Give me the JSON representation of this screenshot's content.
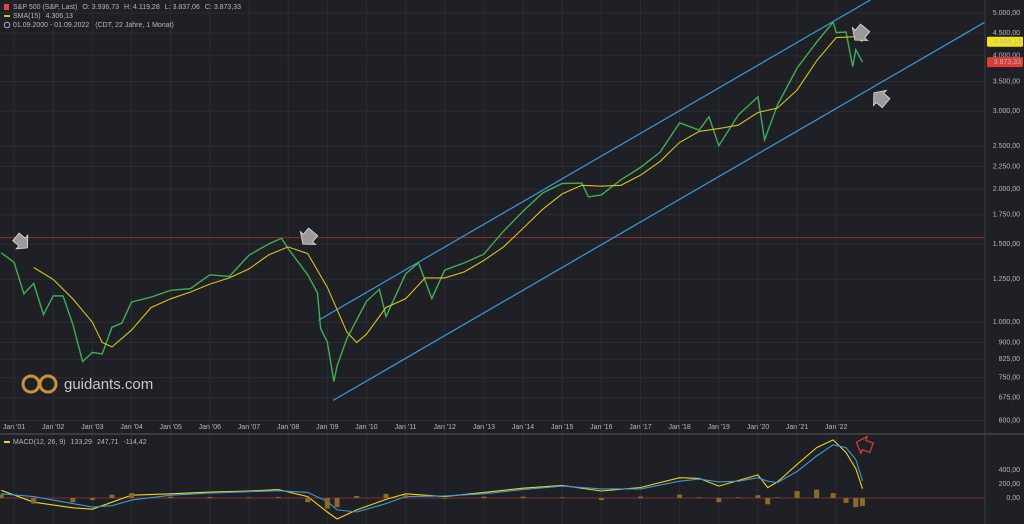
{
  "chart_data": [
    {
      "type": "line",
      "series": [
        {
          "name": "S&P 500 (S&P, Last)",
          "color": "#3fae55",
          "kind": "line",
          "x": [
            2000.67,
            2001.0,
            2001.25,
            2001.5,
            2001.75,
            2002.0,
            2002.25,
            2002.5,
            2002.75,
            2003.0,
            2003.25,
            2003.5,
            2003.75,
            2004.0,
            2004.5,
            2005.0,
            2005.5,
            2006.0,
            2006.5,
            2007.0,
            2007.5,
            2007.83,
            2008.0,
            2008.5,
            2008.75,
            2008.83,
            2009.0,
            2009.17,
            2009.25,
            2009.5,
            2010.0,
            2010.33,
            2010.5,
            2011.0,
            2011.33,
            2011.67,
            2012.0,
            2012.5,
            2013.0,
            2013.5,
            2014.0,
            2014.5,
            2015.0,
            2015.5,
            2015.67,
            2016.0,
            2016.5,
            2017.0,
            2017.5,
            2018.0,
            2018.5,
            2018.75,
            2019.0,
            2019.5,
            2020.0,
            2020.17,
            2020.5,
            2021.0,
            2021.5,
            2021.92,
            2022.0,
            2022.25,
            2022.42,
            2022.5,
            2022.67
          ],
          "values": [
            1436,
            1366,
            1160,
            1224,
            1040,
            1148,
            1147,
            990,
            815,
            855,
            848,
            975,
            995,
            1111,
            1140,
            1181,
            1191,
            1280,
            1270,
            1418,
            1503,
            1549,
            1468,
            1280,
            1166,
            968,
            903,
            735,
            797,
            919,
            1115,
            1187,
            1030,
            1286,
            1363,
            1131,
            1312,
            1362,
            1426,
            1606,
            1782,
            1960,
            2059,
            2063,
            1920,
            1940,
            2099,
            2239,
            2423,
            2823,
            2718,
            2913,
            2507,
            2942,
            3231,
            2585,
            3100,
            3756,
            4298,
            4766,
            4515,
            4530,
            3785,
            4130,
            3873
          ],
          "last": {
            "value": 3873.33,
            "label": "3.873,33"
          },
          "badge_color": "#e03a3a"
        },
        {
          "name": "SMA(15)",
          "color": "#d9c21c",
          "kind": "line",
          "x": [
            2001.5,
            2002.0,
            2002.5,
            2003.0,
            2003.25,
            2003.5,
            2004.0,
            2004.5,
            2005.0,
            2005.5,
            2006.0,
            2006.5,
            2007.0,
            2007.5,
            2008.0,
            2008.5,
            2009.0,
            2009.5,
            2009.75,
            2010.0,
            2010.5,
            2011.0,
            2011.5,
            2012.0,
            2012.5,
            2013.0,
            2013.5,
            2014.0,
            2014.5,
            2015.0,
            2015.5,
            2016.0,
            2016.5,
            2017.0,
            2017.5,
            2018.0,
            2018.5,
            2019.0,
            2019.5,
            2020.0,
            2020.5,
            2021.0,
            2021.5,
            2022.0,
            2022.5,
            2022.67
          ],
          "values": [
            1330,
            1250,
            1130,
            1000,
            900,
            880,
            960,
            1080,
            1130,
            1170,
            1220,
            1260,
            1320,
            1420,
            1480,
            1430,
            1200,
            950,
            900,
            940,
            1080,
            1130,
            1260,
            1260,
            1300,
            1380,
            1480,
            1630,
            1800,
            1950,
            2040,
            2030,
            2040,
            2150,
            2310,
            2550,
            2700,
            2740,
            2790,
            2980,
            3050,
            3350,
            3900,
            4400,
            4420,
            4306
          ],
          "last": {
            "value": 4306.13,
            "label": "4.306,13"
          },
          "badge_color": "#f2e21a"
        }
      ],
      "ohlc_labels": [
        "O:",
        "H:",
        "L:",
        "C:"
      ],
      "ohlc": [
        {
          "value": 3936.73,
          "label": "3.936,73"
        },
        {
          "value": 4119.28,
          "label": "4.119,28"
        },
        {
          "value": 3837.06,
          "label": "3.837,06"
        },
        {
          "value": 3873.33,
          "label": "3.873,33"
        }
      ],
      "date_range": "01.09.2000 - 01.09.2022",
      "range_note": "(CDT, 22 Jahre, 1 Monat)",
      "watermark": "guidants.com",
      "yscale": "log",
      "ylim": [
        565,
        5350
      ],
      "yticks": [
        {
          "value": 600,
          "label": "600,00"
        },
        {
          "value": 675,
          "label": "675,00"
        },
        {
          "value": 750,
          "label": "750,00"
        },
        {
          "value": 825,
          "label": "825,00"
        },
        {
          "value": 900,
          "label": "900,00"
        },
        {
          "value": 1000,
          "label": "1.000,00"
        },
        {
          "value": 1250,
          "label": "1.250,00"
        },
        {
          "value": 1500,
          "label": "1.500,00"
        },
        {
          "value": 1750,
          "label": "1.750,00"
        },
        {
          "value": 2000,
          "label": "2.000,00"
        },
        {
          "value": 2250,
          "label": "2.250,00"
        },
        {
          "value": 2500,
          "label": "2.500,00"
        },
        {
          "value": 3000,
          "label": "3.000,00"
        },
        {
          "value": 3500,
          "label": "3.500,00"
        },
        {
          "value": 4000,
          "label": "4.000,00"
        },
        {
          "value": 4500,
          "label": "4.500,00"
        },
        {
          "value": 5000,
          "label": "5.000,00"
        }
      ],
      "xlim": [
        2000.64,
        2025.8
      ],
      "xticks": [
        {
          "value": 2001,
          "label": "Jan '01"
        },
        {
          "value": 2002,
          "label": "Jan '02"
        },
        {
          "value": 2003,
          "label": "Jan '03"
        },
        {
          "value": 2004,
          "label": "Jan '04"
        },
        {
          "value": 2005,
          "label": "Jan '05"
        },
        {
          "value": 2006,
          "label": "Jan '06"
        },
        {
          "value": 2007,
          "label": "Jan '07"
        },
        {
          "value": 2008,
          "label": "Jan '08"
        },
        {
          "value": 2009,
          "label": "Jan '09"
        },
        {
          "value": 2010,
          "label": "Jan '10"
        },
        {
          "value": 2011,
          "label": "Jan '11"
        },
        {
          "value": 2012,
          "label": "Jan '12"
        },
        {
          "value": 2013,
          "label": "Jan '13"
        },
        {
          "value": 2014,
          "label": "Jan '14"
        },
        {
          "value": 2015,
          "label": "Jan '15"
        },
        {
          "value": 2016,
          "label": "Jan '16"
        },
        {
          "value": 2017,
          "label": "Jan '17"
        },
        {
          "value": 2018,
          "label": "Jan '18"
        },
        {
          "value": 2019,
          "label": "Jan '19"
        },
        {
          "value": 2020,
          "label": "Jan '20"
        },
        {
          "value": 2021,
          "label": "Jan '21"
        },
        {
          "value": 2022,
          "label": "Jan '22"
        }
      ],
      "grid": true,
      "hline": {
        "value": 1553,
        "color": "#a03030"
      },
      "channel_color": "#3a9ad9",
      "channel": [
        {
          "x": [
            2008.77,
            2022.87
          ],
          "values": [
            1010,
            5350
          ]
        },
        {
          "x": [
            2009.15,
            2025.8
          ],
          "values": [
            666,
            4770
          ]
        }
      ]
    },
    {
      "type": "line",
      "title": "MACD(12, 26, 9)",
      "legend_values": [
        {
          "value": 133.29,
          "label": "133,29",
          "color": "#e8e8e8"
        },
        {
          "value": 247.71,
          "label": "247,71",
          "color": "#3a9ad9"
        },
        {
          "value": -114.42,
          "label": "-114,42",
          "color": "#a07a2a"
        }
      ],
      "series": [
        {
          "color": "#f2d21a",
          "kind": "line",
          "x": [
            2000.67,
            2001.5,
            2002.5,
            2003.0,
            2003.5,
            2004.0,
            2005.0,
            2006.0,
            2007.0,
            2007.75,
            2008.5,
            2009.0,
            2009.25,
            2009.75,
            2010.5,
            2011.0,
            2012.0,
            2013.0,
            2014.0,
            2015.0,
            2016.0,
            2017.0,
            2018.0,
            2018.5,
            2019.0,
            2019.5,
            2020.0,
            2020.25,
            2020.5,
            2021.0,
            2021.5,
            2021.92,
            2022.25,
            2022.5,
            2022.67
          ],
          "values": [
            110,
            -60,
            -140,
            -160,
            -60,
            40,
            60,
            85,
            100,
            120,
            20,
            -200,
            -300,
            -170,
            -20,
            60,
            20,
            80,
            140,
            180,
            100,
            150,
            290,
            280,
            170,
            250,
            330,
            150,
            230,
            480,
            720,
            830,
            650,
            420,
            133
          ]
        },
        {
          "color": "#3a9ad9",
          "kind": "line",
          "x": [
            2000.67,
            2001.5,
            2002.5,
            2003.0,
            2003.5,
            2004.0,
            2005.0,
            2006.0,
            2007.0,
            2007.75,
            2008.5,
            2009.0,
            2009.25,
            2009.75,
            2010.5,
            2011.0,
            2012.0,
            2013.0,
            2014.0,
            2015.0,
            2016.0,
            2017.0,
            2018.0,
            2018.5,
            2019.0,
            2019.5,
            2020.0,
            2020.25,
            2020.5,
            2021.0,
            2021.5,
            2021.92,
            2022.25,
            2022.5,
            2022.67
          ],
          "values": [
            60,
            20,
            -80,
            -130,
            -110,
            -30,
            40,
            70,
            90,
            105,
            80,
            -50,
            -170,
            -200,
            -80,
            20,
            30,
            60,
            120,
            170,
            130,
            130,
            240,
            270,
            230,
            240,
            290,
            240,
            220,
            380,
            600,
            760,
            720,
            550,
            248
          ]
        },
        {
          "color": "#8a6a2a",
          "kind": "bar",
          "x": [
            2000.67,
            2001.5,
            2002.5,
            2003.0,
            2003.5,
            2004.0,
            2005.0,
            2006.0,
            2007.0,
            2007.75,
            2008.5,
            2009.0,
            2009.25,
            2009.75,
            2010.5,
            2011.0,
            2012.0,
            2013.0,
            2014.0,
            2015.0,
            2016.0,
            2017.0,
            2018.0,
            2018.5,
            2019.0,
            2019.5,
            2020.0,
            2020.25,
            2020.5,
            2021.0,
            2021.5,
            2021.92,
            2022.25,
            2022.5,
            2022.67
          ],
          "values": [
            50,
            -80,
            -60,
            -30,
            50,
            70,
            20,
            15,
            10,
            15,
            -60,
            -150,
            -130,
            30,
            60,
            40,
            -10,
            20,
            20,
            10,
            -30,
            20,
            50,
            10,
            -60,
            10,
            40,
            -90,
            10,
            100,
            120,
            70,
            -70,
            -130,
            -115
          ]
        }
      ],
      "ylim": [
        -371,
        886
      ],
      "yticks": [
        {
          "value": 0,
          "label": "0,00"
        },
        {
          "value": 200,
          "label": "200,00"
        },
        {
          "value": 400,
          "label": "400,00"
        }
      ],
      "xlim": [
        2000.64,
        2025.8
      ],
      "zero_line_color": "#a03030"
    }
  ]
}
